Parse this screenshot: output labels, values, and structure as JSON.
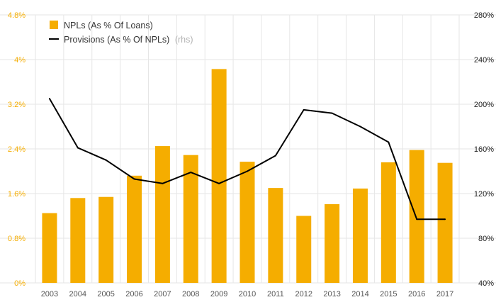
{
  "chart_data": {
    "type": "bar+line",
    "categories": [
      "2003",
      "2004",
      "2005",
      "2006",
      "2007",
      "2008",
      "2009",
      "2010",
      "2011",
      "2012",
      "2013",
      "2014",
      "2015",
      "2016",
      "2017"
    ],
    "series": [
      {
        "name": "NPLs (As % Of Loans)",
        "type": "bar",
        "axis": "left",
        "color": "#f5ad00",
        "values": [
          1.25,
          1.52,
          1.54,
          1.92,
          2.45,
          2.29,
          3.83,
          2.17,
          1.7,
          1.2,
          1.41,
          1.69,
          2.16,
          2.38,
          2.15
        ]
      },
      {
        "name": "Provisions (As % Of NPLs)",
        "name_suffix": "(rhs)",
        "type": "line",
        "axis": "right",
        "color": "#000000",
        "values": [
          205,
          161,
          150,
          133,
          129,
          139,
          129,
          140,
          154,
          195,
          192,
          180,
          166,
          97,
          97
        ]
      }
    ],
    "yleft": {
      "lim": [
        0,
        4.8
      ],
      "ticks": [
        "0%",
        "0.8%",
        "1.6%",
        "2.4%",
        "3.2%",
        "4%",
        "4.8%"
      ],
      "color": "#f5ad00"
    },
    "yright": {
      "lim": [
        40,
        280
      ],
      "ticks": [
        "40%",
        "80%",
        "120%",
        "160%",
        "200%",
        "240%",
        "280%"
      ],
      "color": "#222222"
    },
    "grid": true,
    "legend_position": "top-left"
  }
}
